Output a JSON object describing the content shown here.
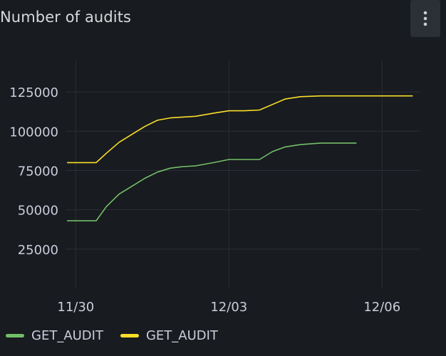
{
  "panel": {
    "title": "Number of audits",
    "menu_icon": "kebab-menu-icon"
  },
  "chart_data": {
    "type": "line",
    "x_ticks": [
      "11/30",
      "12/03",
      "12/06"
    ],
    "y_ticks": [
      25000,
      50000,
      75000,
      100000,
      125000
    ],
    "y_tick_labels": [
      "25000",
      "50000",
      "75000",
      "100000",
      "125000"
    ],
    "x_range_days": [
      -0.2,
      6.75
    ],
    "ylim": [
      0,
      145000
    ],
    "grid": true,
    "legend_placement": "bottom-left",
    "series": [
      {
        "name": "GET_AUDIT",
        "color": "#73bf69",
        "points": [
          [
            -0.17,
            43000
          ],
          [
            0.4,
            43000
          ],
          [
            0.6,
            52000
          ],
          [
            0.85,
            60000
          ],
          [
            1.1,
            65000
          ],
          [
            1.35,
            70000
          ],
          [
            1.6,
            74000
          ],
          [
            1.85,
            76500
          ],
          [
            2.1,
            77500
          ],
          [
            2.35,
            78000
          ],
          [
            2.7,
            80000
          ],
          [
            3.0,
            82000
          ],
          [
            3.3,
            82000
          ],
          [
            3.6,
            82000
          ],
          [
            3.85,
            87000
          ],
          [
            4.1,
            90000
          ],
          [
            4.4,
            91500
          ],
          [
            4.8,
            92500
          ],
          [
            5.2,
            92500
          ],
          [
            5.5,
            92500
          ]
        ]
      },
      {
        "name": "GET_AUDIT",
        "color": "#fade2a",
        "points": [
          [
            -0.17,
            80000
          ],
          [
            0.4,
            80000
          ],
          [
            0.6,
            86000
          ],
          [
            0.85,
            93000
          ],
          [
            1.1,
            98000
          ],
          [
            1.35,
            103000
          ],
          [
            1.6,
            107000
          ],
          [
            1.85,
            108500
          ],
          [
            2.1,
            109000
          ],
          [
            2.35,
            109500
          ],
          [
            2.7,
            111500
          ],
          [
            3.0,
            113000
          ],
          [
            3.3,
            113000
          ],
          [
            3.6,
            113500
          ],
          [
            3.85,
            117000
          ],
          [
            4.1,
            120500
          ],
          [
            4.4,
            122000
          ],
          [
            4.8,
            122500
          ],
          [
            5.5,
            122500
          ],
          [
            6.1,
            122500
          ],
          [
            6.6,
            122500
          ]
        ]
      }
    ]
  }
}
